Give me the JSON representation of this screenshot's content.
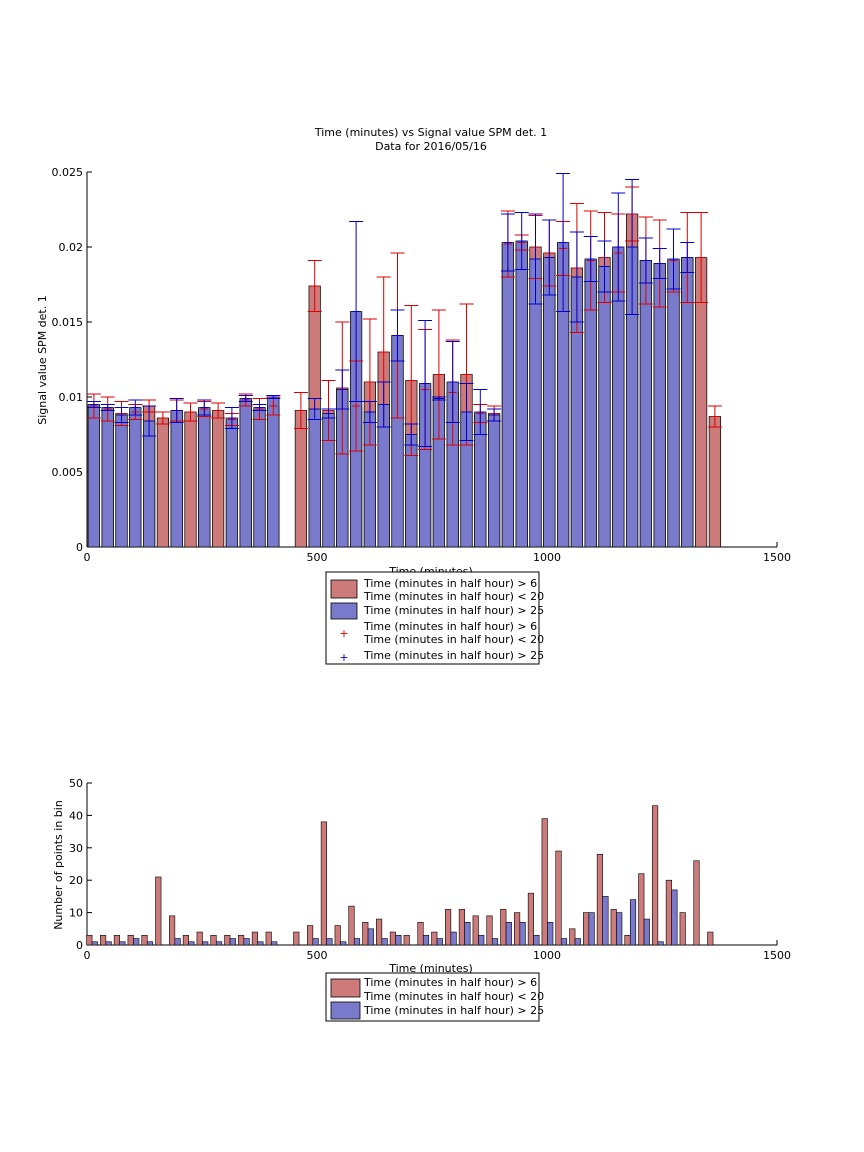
{
  "colors": {
    "red_bar": "#cc7a7a",
    "blue_bar": "#7a7acc",
    "red_err": "#dd0000",
    "blue_err": "#0000cc",
    "axis": "#000000"
  },
  "chart_data": [
    {
      "type": "bar",
      "title": "Time (minutes) vs Signal value SPM det. 1",
      "subtitle": "Data for 2016/05/16",
      "xlabel": "Time (minutes)",
      "ylabel": "Signal value SPM det. 1",
      "xlim": [
        0,
        1500
      ],
      "ylim": [
        0,
        0.025
      ],
      "xticks": [
        "0",
        "500",
        "1000",
        "1500"
      ],
      "yticks": [
        "0",
        "0.005",
        "0.01",
        "0.015",
        "0.02",
        "0.025"
      ],
      "grid": false,
      "legend": [
        "Time (minutes in half hour) > 6",
        "Time (minutes in half hour) < 20",
        "Time (minutes in half hour) > 25",
        "Time (minutes in half hour) > 6",
        "Time (minutes in half hour) < 20",
        "Time (minutes in half hour) > 25"
      ],
      "legend_placement": "below",
      "series": [
        {
          "name": "Time (minutes in half hour) > 6 Time (minutes in half hour) < 20",
          "x": [
            15,
            45,
            75,
            105,
            135,
            165,
            195,
            225,
            255,
            285,
            315,
            345,
            375,
            405,
            465,
            495,
            525,
            555,
            585,
            615,
            645,
            675,
            705,
            735,
            765,
            795,
            825,
            855,
            885,
            915,
            945,
            975,
            1005,
            1035,
            1065,
            1095,
            1125,
            1155,
            1185,
            1215,
            1245,
            1275,
            1305,
            1335,
            1365
          ],
          "values": [
            0.0094,
            0.0092,
            0.0089,
            0.009,
            0.0094,
            0.0086,
            0.0091,
            0.009,
            0.0092,
            0.0091,
            0.0085,
            0.0098,
            0.0092,
            0.0094,
            0.0091,
            0.0174,
            0.0091,
            0.0106,
            0.0094,
            0.011,
            0.013,
            0.0141,
            0.0111,
            0.0105,
            0.0115,
            0.0103,
            0.0115,
            0.0089,
            0.0089,
            0.0202,
            0.0203,
            0.02,
            0.0196,
            0.0199,
            0.0186,
            0.0191,
            0.0193,
            0.0196,
            0.0222,
            0.0191,
            0.0189,
            0.0191,
            0.0193,
            0.0193,
            0.0087
          ],
          "errors": [
            0.0008,
            0.0008,
            0.0008,
            0.0005,
            0.0004,
            0.0004,
            0.0007,
            0.0006,
            0.0005,
            0.0005,
            0.0004,
            0.0004,
            0.0007,
            0.0006,
            0.0012,
            0.0017,
            0.002,
            0.0044,
            0.003,
            0.0042,
            0.005,
            0.0055,
            0.005,
            0.004,
            0.0043,
            0.0035,
            0.0047,
            0.0006,
            0.0005,
            0.0022,
            0.0005,
            0.0021,
            0.0022,
            0.0018,
            0.0043,
            0.0033,
            0.003,
            0.0026,
            0.0018,
            0.0029,
            0.0029,
            0.0021,
            0.003,
            0.003,
            0.0007
          ]
        },
        {
          "name": "Time (minutes in half hour) > 25",
          "x": [
            15,
            45,
            75,
            105,
            135,
            195,
            255,
            315,
            345,
            375,
            405,
            495,
            525,
            555,
            585,
            615,
            645,
            675,
            705,
            735,
            765,
            795,
            825,
            855,
            885,
            915,
            945,
            975,
            1005,
            1035,
            1065,
            1095,
            1125,
            1155,
            1185,
            1215,
            1245,
            1275,
            1305
          ],
          "values": [
            0.0095,
            0.0093,
            0.0088,
            0.0093,
            0.0084,
            0.0091,
            0.0093,
            0.0086,
            0.0099,
            0.0093,
            0.01,
            0.0092,
            0.0089,
            0.0105,
            0.0157,
            0.009,
            0.0095,
            0.0141,
            0.0075,
            0.0109,
            0.0099,
            0.011,
            0.009,
            0.009,
            0.0088,
            0.0203,
            0.0204,
            0.0192,
            0.0193,
            0.0203,
            0.018,
            0.0192,
            0.0187,
            0.02,
            0.02,
            0.0191,
            0.0189,
            0.0192,
            0.0193
          ],
          "errors": [
            0.0002,
            0.0002,
            0.0005,
            0.0005,
            0.001,
            0.0008,
            0.0005,
            0.0007,
            0.0002,
            0.0002,
            0.0001,
            0.0007,
            0.0003,
            0.0013,
            0.006,
            0.0007,
            0.0015,
            0.0017,
            0.0007,
            0.0042,
            0.0001,
            0.0027,
            0.0019,
            0.0015,
            0.0004,
            0.0019,
            0.0019,
            0.003,
            0.0025,
            0.0046,
            0.003,
            0.0015,
            0.0017,
            0.0036,
            0.0045,
            0.0015,
            0.001,
            0.002,
            0.001
          ]
        }
      ]
    },
    {
      "type": "bar",
      "xlabel": "Time (minutes)",
      "ylabel": "Number of points in bin",
      "xlim": [
        0,
        1500
      ],
      "ylim": [
        0,
        50
      ],
      "xticks": [
        "0",
        "500",
        "1000",
        "1500"
      ],
      "yticks": [
        "0",
        "10",
        "20",
        "30",
        "40",
        "50"
      ],
      "grid": false,
      "legend": [
        "Time (minutes in half hour) > 6",
        "Time (minutes in half hour) < 20",
        "Time (minutes in half hour) > 25"
      ],
      "legend_placement": "below",
      "series": [
        {
          "name": "Time (minutes in half hour) > 6 Time (minutes in half hour) < 20",
          "x": [
            5,
            35,
            65,
            95,
            125,
            155,
            185,
            215,
            245,
            275,
            305,
            335,
            365,
            395,
            455,
            485,
            515,
            545,
            575,
            605,
            635,
            665,
            695,
            725,
            755,
            785,
            815,
            845,
            875,
            905,
            935,
            965,
            995,
            1025,
            1055,
            1085,
            1115,
            1145,
            1175,
            1205,
            1235,
            1265,
            1295,
            1325,
            1355
          ],
          "values": [
            3,
            3,
            3,
            3,
            3,
            21,
            9,
            3,
            4,
            3,
            3,
            3,
            4,
            4,
            4,
            6,
            38,
            6,
            12,
            7,
            8,
            4,
            3,
            7,
            4,
            11,
            11,
            9,
            9,
            11,
            10,
            16,
            39,
            29,
            5,
            10,
            28,
            11,
            3,
            22,
            43,
            20,
            10,
            26,
            4
          ]
        },
        {
          "name": "Time (minutes in half hour) > 25",
          "x": [
            17,
            47,
            77,
            107,
            137,
            197,
            227,
            257,
            287,
            317,
            347,
            377,
            407,
            497,
            527,
            557,
            587,
            617,
            647,
            677,
            737,
            767,
            797,
            827,
            857,
            887,
            917,
            947,
            977,
            1007,
            1037,
            1067,
            1097,
            1127,
            1157,
            1187,
            1217,
            1247,
            1277
          ],
          "values": [
            1,
            1,
            1,
            2,
            1,
            2,
            1,
            1,
            1,
            2,
            2,
            1,
            1,
            2,
            2,
            1,
            2,
            5,
            2,
            3,
            3,
            2,
            4,
            7,
            3,
            2,
            7,
            7,
            3,
            7,
            2,
            2,
            10,
            15,
            10,
            14,
            8,
            1,
            17
          ]
        }
      ]
    }
  ]
}
